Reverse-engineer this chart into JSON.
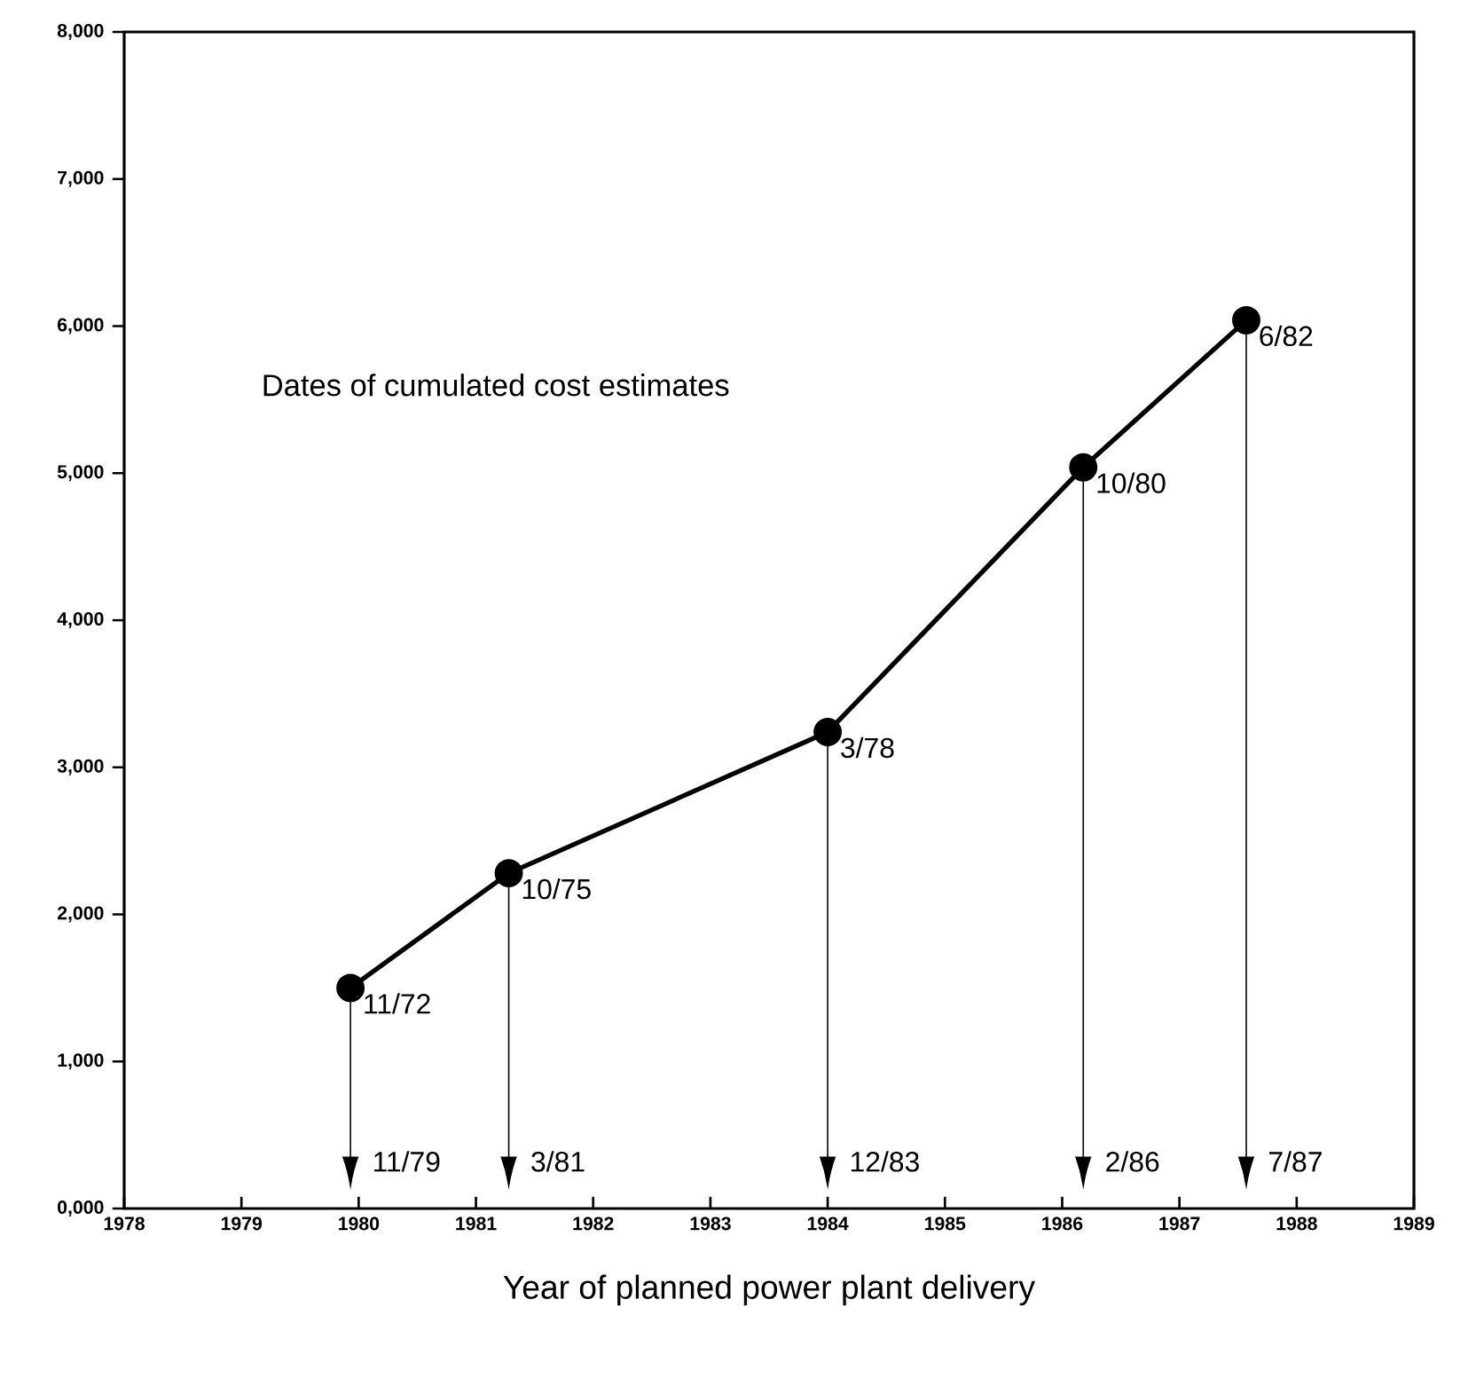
{
  "chart_data": {
    "type": "line",
    "xlabel": "Year of planned power plant delivery",
    "x": [
      1979.93,
      1981.28,
      1984.0,
      1986.18,
      1987.57
    ],
    "series": [
      {
        "color": "#000000",
        "values": [
          1500,
          2280,
          3240,
          5040,
          6040
        ]
      }
    ],
    "marker": "circle",
    "line_style": "solid",
    "xlim": [
      1978,
      1989
    ],
    "xticks": [
      1978,
      1979,
      1980,
      1981,
      1982,
      1983,
      1984,
      1985,
      1986,
      1987,
      1988,
      1989
    ],
    "ylim": [
      0,
      8000
    ],
    "yticks": [
      {
        "value": 0,
        "label": "0,000"
      },
      {
        "value": 1000,
        "label": "1,000"
      },
      {
        "value": 2000,
        "label": "2,000"
      },
      {
        "value": 3000,
        "label": "3,000"
      },
      {
        "value": 4000,
        "label": "4,000"
      },
      {
        "value": 5000,
        "label": "5,000"
      },
      {
        "value": 6000,
        "label": "6,000"
      },
      {
        "value": 7000,
        "label": "7,000"
      },
      {
        "value": 8000,
        "label": "8,000"
      }
    ],
    "annotations": [
      "Dates of cumulated cost estimates",
      {
        "text": "11/72",
        "x": 1979.93,
        "y": 1500
      },
      {
        "text": "10/75",
        "x": 1981.28,
        "y": 2280
      },
      {
        "text": "3/78",
        "x": 1984.0,
        "y": 3240
      },
      {
        "text": "10/80",
        "x": 1986.18,
        "y": 5040
      },
      {
        "text": "6/82",
        "x": 1987.57,
        "y": 6040
      },
      {
        "text": "11/79",
        "x": 1979.93,
        "y": 1500
      },
      {
        "text": "3/81",
        "x": 1981.28,
        "y": 2280
      },
      {
        "text": "12/83",
        "x": 1984.0,
        "y": 3240
      },
      {
        "text": "2/86",
        "x": 1986.18,
        "y": 5040
      },
      {
        "text": "7/87",
        "x": 1987.57,
        "y": 6040
      }
    ]
  }
}
